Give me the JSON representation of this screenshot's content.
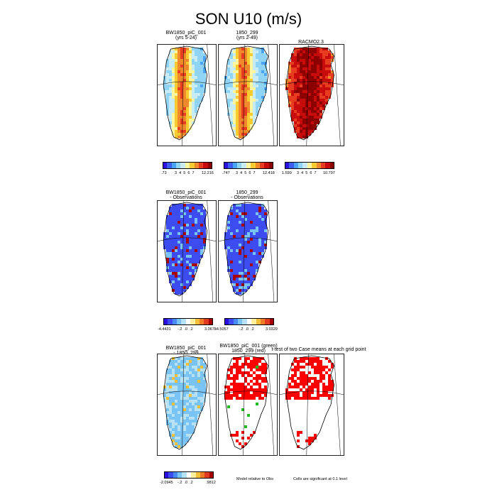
{
  "page_title": "SON U10 (m/s)",
  "palette": [
    "#2c10e0",
    "#3d5cf0",
    "#4aa3f5",
    "#8fd3f5",
    "#c7ecf5",
    "#fff6a0",
    "#f8cc30",
    "#f0882c",
    "#e73c20",
    "#c80c0c",
    "#8c0000"
  ],
  "diff_palette": [
    "#2c10e0",
    "#3d4cf0",
    "#4a8af3",
    "#7ac3f5",
    "#b7e2f6",
    "#ffffff",
    "#fff1a0",
    "#f5c039",
    "#ef7c26",
    "#e03a20",
    "#a80000"
  ],
  "row1": {
    "panels": [
      {
        "title_line1": "BW1850_piC_001",
        "title_line2": "(yrs 5-24)",
        "intensity": "model"
      },
      {
        "title_line1": "1850_299",
        "title_line2": "(yrs 2-49)",
        "intensity": "model"
      },
      {
        "title_line1": "RACMO2.3",
        "title_line2": "",
        "intensity": "obs"
      }
    ],
    "colorbars": [
      {
        "min": ".73",
        "ticks": [
          "3",
          "4",
          "5",
          "6",
          "7"
        ],
        "max": "12.216"
      },
      {
        "min": ".747",
        "ticks": [
          "3",
          "4",
          "5",
          "6",
          "7"
        ],
        "max": "12.418"
      },
      {
        "min": "1.599",
        "ticks": [
          "3",
          "4",
          "5",
          "6",
          "7"
        ],
        "max": "10.797"
      }
    ]
  },
  "row2": {
    "panels": [
      {
        "title_line1": "BW1850_piC_001",
        "title_line2": "- Observations"
      },
      {
        "title_line1": "1850_299",
        "title_line2": "- Observations"
      }
    ],
    "colorbars": [
      {
        "min": "-4.4431",
        "ticks": [
          "-.2",
          ".0",
          ".2"
        ],
        "max": "3.0678"
      },
      {
        "min": "-4.5057",
        "ticks": [
          "-.2",
          ".0",
          ".2"
        ],
        "max": "3.0329"
      }
    ]
  },
  "row3": {
    "panels": [
      {
        "title_line1": "BW1850_piC_001",
        "title_line2": "- 1850_299"
      },
      {
        "title_line1": "BW1850_piC_001 (green)",
        "title_line2": "1850_299 (red)"
      },
      {
        "title_line1": "t-test of two Case means at each grid point",
        "title_line2": ""
      }
    ],
    "colorbar": {
      "min": "-2.0945",
      "ticks": [
        "-.2",
        ".0",
        ".2"
      ],
      "max": ".9812"
    },
    "note_model": "Model relative to Obs",
    "note_significance": "Cells are significant at 0.1 level"
  }
}
